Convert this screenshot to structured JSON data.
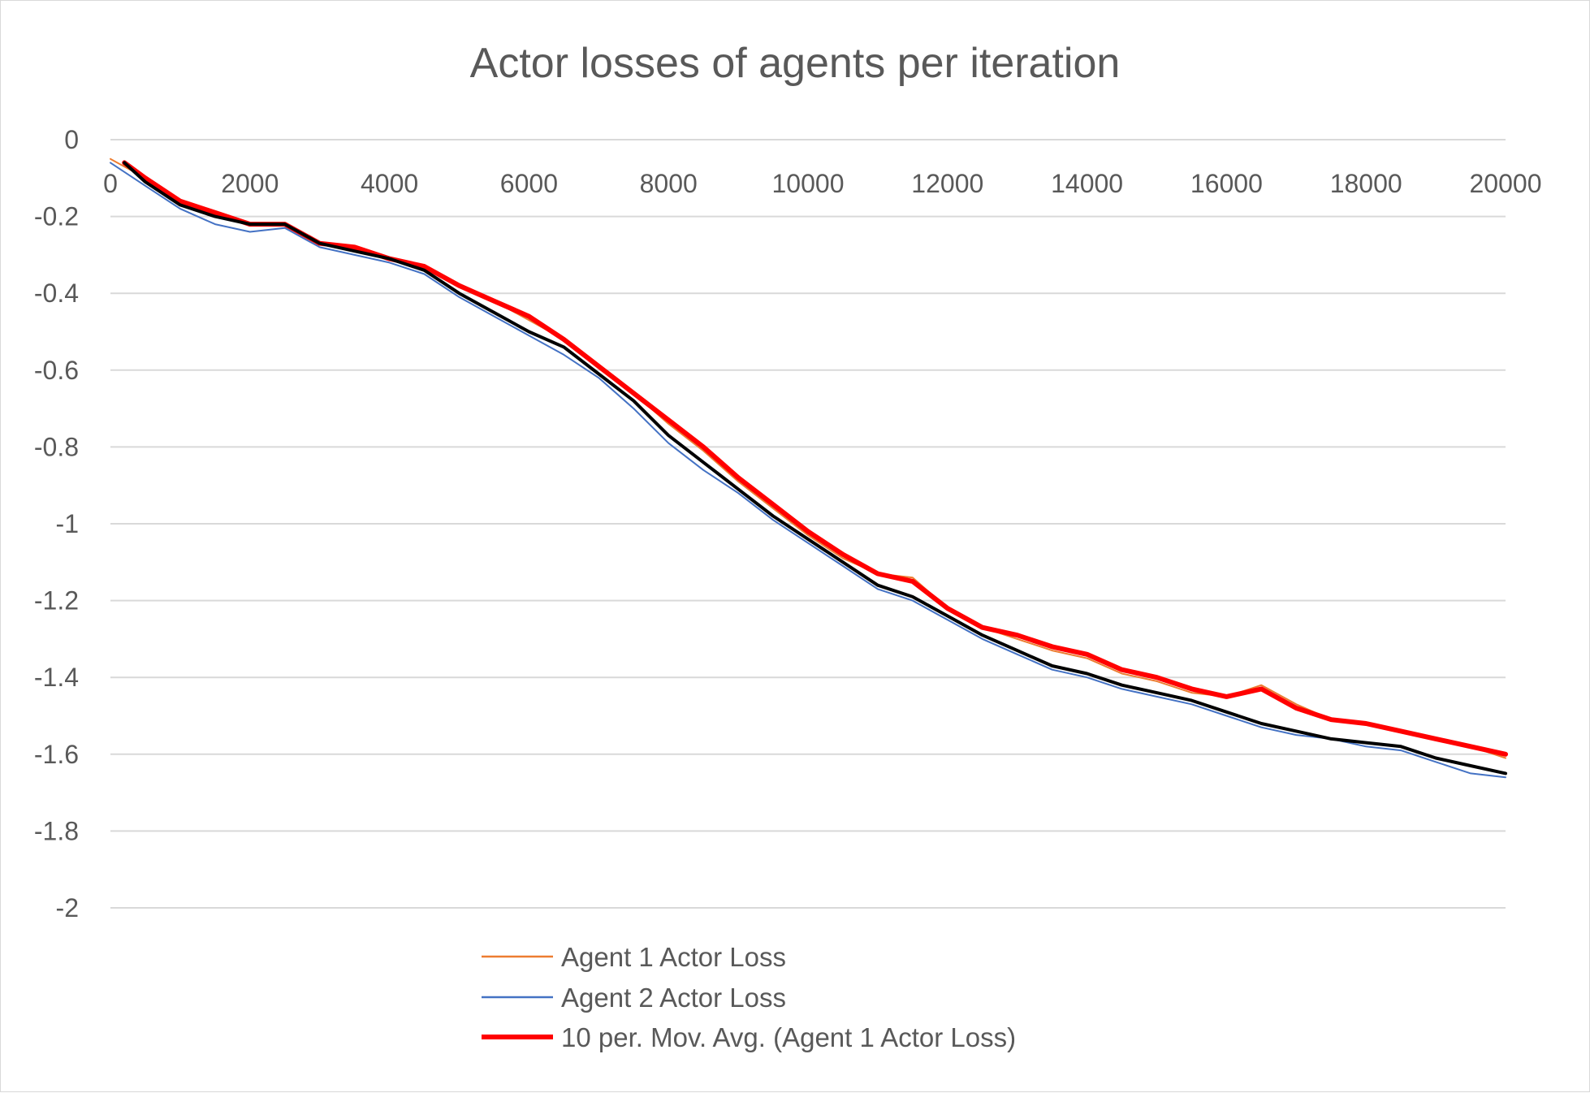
{
  "chart_data": {
    "type": "line",
    "title": "Actor losses of agents per iteration",
    "xlabel": "",
    "ylabel": "",
    "xlim": [
      0,
      20000
    ],
    "ylim": [
      -2,
      0
    ],
    "x_ticks": [
      "0",
      "2000",
      "4000",
      "6000",
      "8000",
      "10000",
      "12000",
      "14000",
      "16000",
      "18000",
      "20000"
    ],
    "y_ticks": [
      "0",
      "-0.2",
      "-0.4",
      "-0.6",
      "-0.8",
      "-1",
      "-1.2",
      "-1.4",
      "-1.6",
      "-1.8",
      "-2"
    ],
    "x_axis_position": "top (crosses at y = 0)",
    "grid": true,
    "legend_position": "bottom",
    "colors": {
      "agent1": "#ed7d31",
      "agent2": "#4472c4",
      "mavg1": "#ff0000",
      "mavg2": "#000000"
    },
    "series": [
      {
        "name": "Agent 1 Actor Loss",
        "color": "#ed7d31",
        "x": [
          0,
          500,
          1000,
          1500,
          2000,
          2500,
          3000,
          3500,
          4000,
          4500,
          5000,
          5500,
          6000,
          6500,
          7000,
          7500,
          8000,
          8500,
          9000,
          9500,
          10000,
          10500,
          11000,
          11500,
          12000,
          12500,
          13000,
          13500,
          14000,
          14500,
          15000,
          15500,
          16000,
          16500,
          17000,
          17500,
          18000,
          18500,
          19000,
          19500,
          20000
        ],
        "y": [
          -0.05,
          -0.1,
          -0.17,
          -0.2,
          -0.22,
          -0.22,
          -0.27,
          -0.28,
          -0.31,
          -0.33,
          -0.38,
          -0.42,
          -0.47,
          -0.52,
          -0.59,
          -0.66,
          -0.74,
          -0.81,
          -0.89,
          -0.96,
          -1.03,
          -1.09,
          -1.13,
          -1.14,
          -1.22,
          -1.27,
          -1.3,
          -1.33,
          -1.35,
          -1.39,
          -1.41,
          -1.44,
          -1.45,
          -1.42,
          -1.47,
          -1.51,
          -1.52,
          -1.54,
          -1.56,
          -1.58,
          -1.61
        ]
      },
      {
        "name": "Agent 2 Actor Loss",
        "color": "#4472c4",
        "x": [
          0,
          500,
          1000,
          1500,
          2000,
          2500,
          3000,
          3500,
          4000,
          4500,
          5000,
          5500,
          6000,
          6500,
          7000,
          7500,
          8000,
          8500,
          9000,
          9500,
          10000,
          10500,
          11000,
          11500,
          12000,
          12500,
          13000,
          13500,
          14000,
          14500,
          15000,
          15500,
          16000,
          16500,
          17000,
          17500,
          18000,
          18500,
          19000,
          19500,
          20000
        ],
        "y": [
          -0.06,
          -0.12,
          -0.18,
          -0.22,
          -0.24,
          -0.23,
          -0.28,
          -0.3,
          -0.32,
          -0.35,
          -0.41,
          -0.46,
          -0.51,
          -0.56,
          -0.62,
          -0.7,
          -0.79,
          -0.86,
          -0.92,
          -0.99,
          -1.05,
          -1.11,
          -1.17,
          -1.2,
          -1.25,
          -1.3,
          -1.34,
          -1.38,
          -1.4,
          -1.43,
          -1.45,
          -1.47,
          -1.5,
          -1.53,
          -1.55,
          -1.56,
          -1.58,
          -1.59,
          -1.62,
          -1.65,
          -1.66
        ]
      },
      {
        "name": "10 per. Mov. Avg. (Agent 1 Actor Loss)",
        "color": "#ff0000",
        "x": [
          200,
          500,
          1000,
          1500,
          2000,
          2500,
          3000,
          3500,
          4000,
          4500,
          5000,
          5500,
          6000,
          6500,
          7000,
          7500,
          8000,
          8500,
          9000,
          9500,
          10000,
          10500,
          11000,
          11500,
          12000,
          12500,
          13000,
          13500,
          14000,
          14500,
          15000,
          15500,
          16000,
          16500,
          17000,
          17500,
          18000,
          18500,
          19000,
          19500,
          20000
        ],
        "y": [
          -0.06,
          -0.1,
          -0.16,
          -0.19,
          -0.22,
          -0.22,
          -0.27,
          -0.28,
          -0.31,
          -0.33,
          -0.38,
          -0.42,
          -0.46,
          -0.52,
          -0.59,
          -0.66,
          -0.73,
          -0.8,
          -0.88,
          -0.95,
          -1.02,
          -1.08,
          -1.13,
          -1.15,
          -1.22,
          -1.27,
          -1.29,
          -1.32,
          -1.34,
          -1.38,
          -1.4,
          -1.43,
          -1.45,
          -1.43,
          -1.48,
          -1.51,
          -1.52,
          -1.54,
          -1.56,
          -1.58,
          -1.6
        ]
      },
      {
        "color": "#000000",
        "x": [
          200,
          500,
          1000,
          1500,
          2000,
          2500,
          3000,
          3500,
          4000,
          4500,
          5000,
          5500,
          6000,
          6500,
          7000,
          7500,
          8000,
          8500,
          9000,
          9500,
          10000,
          10500,
          11000,
          11500,
          12000,
          12500,
          13000,
          13500,
          14000,
          14500,
          15000,
          15500,
          16000,
          16500,
          17000,
          17500,
          18000,
          18500,
          19000,
          19500,
          20000
        ],
        "y": [
          -0.06,
          -0.11,
          -0.17,
          -0.2,
          -0.22,
          -0.22,
          -0.27,
          -0.29,
          -0.31,
          -0.34,
          -0.4,
          -0.45,
          -0.5,
          -0.54,
          -0.61,
          -0.68,
          -0.77,
          -0.84,
          -0.91,
          -0.98,
          -1.04,
          -1.1,
          -1.16,
          -1.19,
          -1.24,
          -1.29,
          -1.33,
          -1.37,
          -1.39,
          -1.42,
          -1.44,
          -1.46,
          -1.49,
          -1.52,
          -1.54,
          -1.56,
          -1.57,
          -1.58,
          -1.61,
          -1.63,
          -1.65
        ]
      }
    ]
  }
}
